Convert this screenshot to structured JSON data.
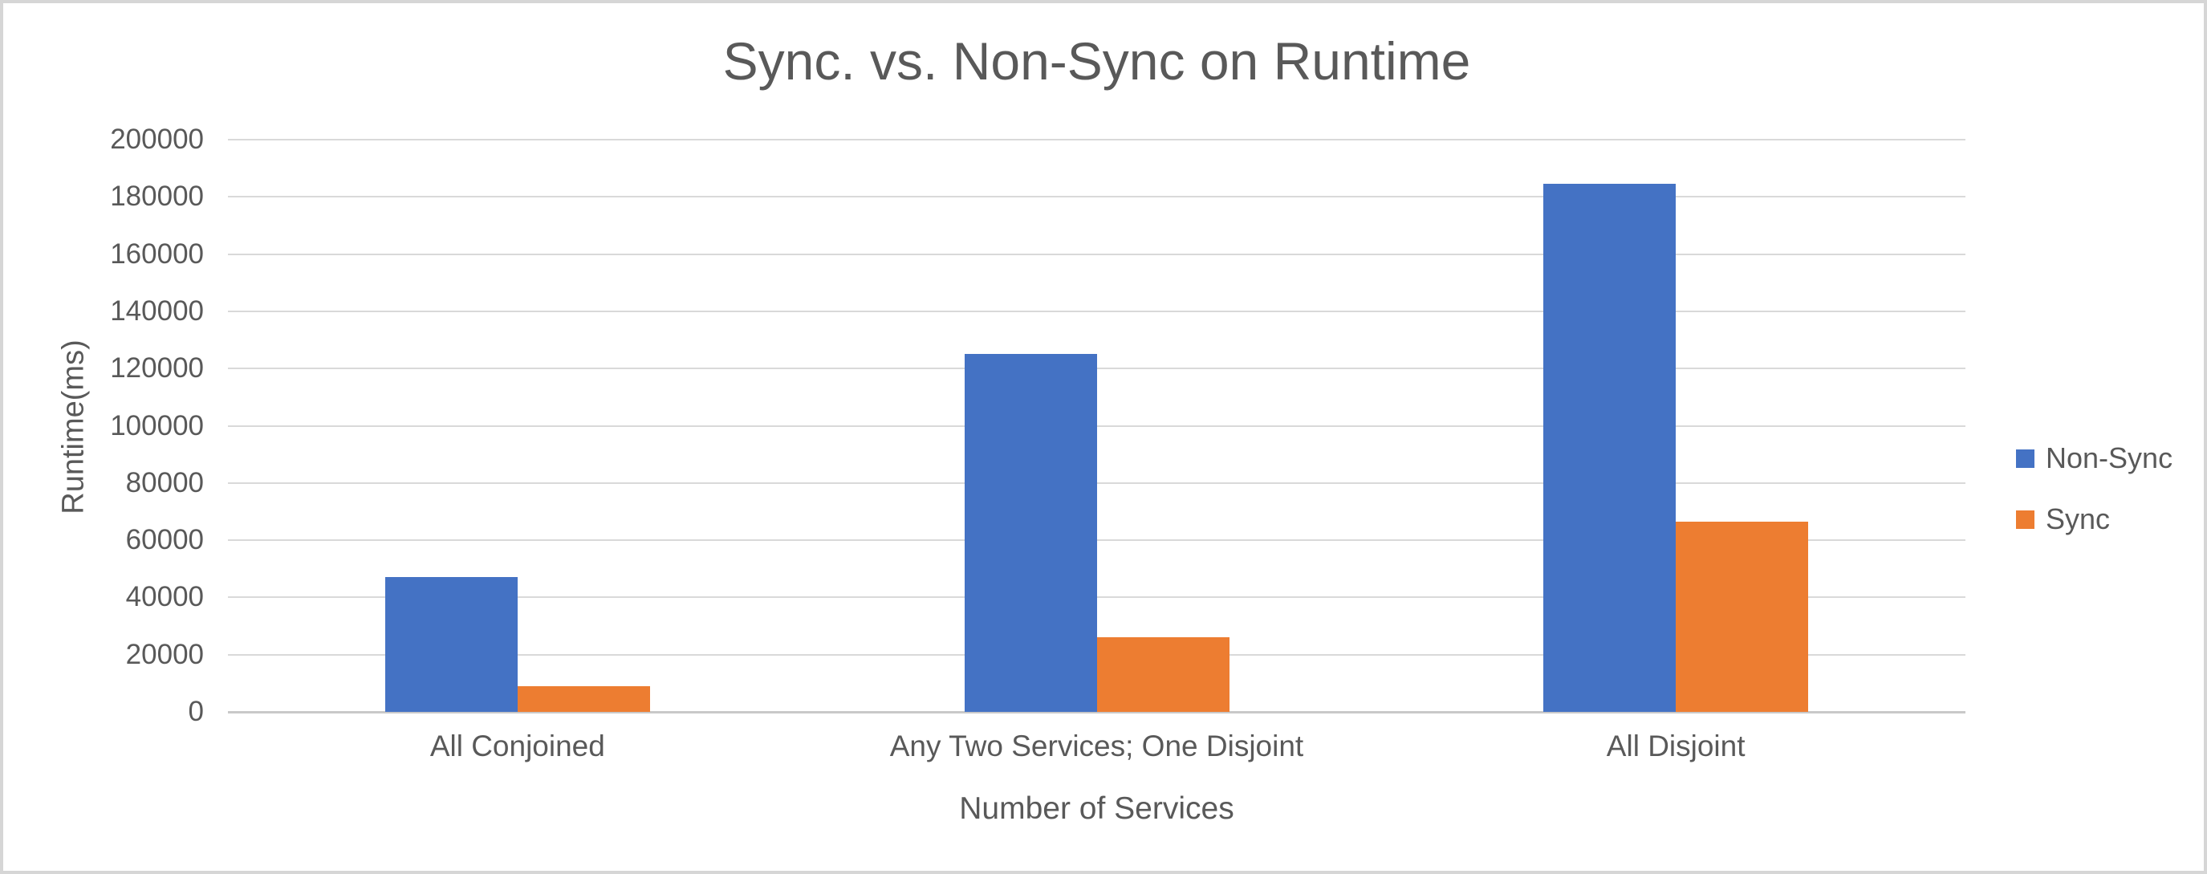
{
  "chart_data": {
    "type": "bar",
    "title": "Sync. vs. Non-Sync on Runtime",
    "xlabel": "Number of Services",
    "ylabel": "Runtime(ms)",
    "categories": [
      "All Conjoined",
      "Any Two Services; One Disjoint",
      "All Disjoint"
    ],
    "series": [
      {
        "name": "Non-Sync",
        "color": "#4472C4",
        "values": [
          47000,
          125000,
          184500
        ]
      },
      {
        "name": "Sync",
        "color": "#ED7D31",
        "values": [
          9000,
          26000,
          66500
        ]
      }
    ],
    "ylim": [
      0,
      200000
    ],
    "ytick_step": 20000,
    "ytick_labels": [
      "0",
      "20000",
      "40000",
      "60000",
      "80000",
      "100000",
      "120000",
      "140000",
      "160000",
      "180000",
      "200000"
    ],
    "grid": true,
    "legend_position": "right",
    "legend_entries": [
      "Non-Sync",
      "Sync"
    ],
    "colors": {
      "non_sync": "#4472C4",
      "sync": "#ED7D31",
      "text": "#595959",
      "gridline": "#D9D9D9",
      "axis_line": "#C9C9C9",
      "frame_border": "#D6D6D6",
      "background": "#FFFFFF"
    }
  }
}
